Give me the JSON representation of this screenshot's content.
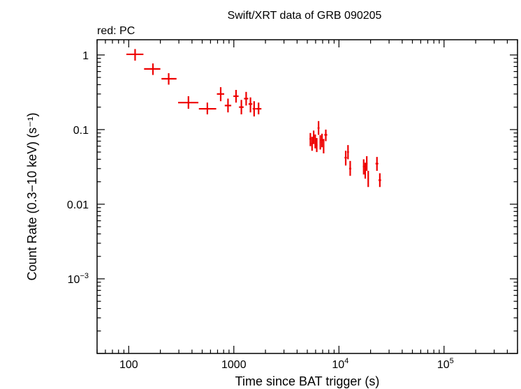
{
  "chart_data": {
    "type": "scatter",
    "title": "Swift/XRT data of GRB 090205",
    "subtitle": "red: PC",
    "xlabel": "Time since BAT trigger (s)",
    "ylabel": "Count Rate (0.3−10 keV) (s⁻¹)",
    "xscale": "log",
    "yscale": "log",
    "xlim": [
      50,
      500000
    ],
    "ylim": [
      0.0001,
      1.6
    ],
    "x_ticks": [
      {
        "value": 100,
        "label": "100"
      },
      {
        "value": 1000,
        "label": "1000"
      },
      {
        "value": 10000,
        "base": "10",
        "exp": "4"
      },
      {
        "value": 100000,
        "base": "10",
        "exp": "5"
      }
    ],
    "y_ticks": [
      {
        "value": 1,
        "label": "1"
      },
      {
        "value": 0.1,
        "label": "0.1"
      },
      {
        "value": 0.01,
        "label": "0.01"
      },
      {
        "value": 0.001,
        "base": "10",
        "exp": "−3"
      }
    ],
    "series_color": "#ee0000",
    "series": [
      {
        "name": "PC",
        "points": [
          {
            "t": 115,
            "tlo": 95,
            "thi": 138,
            "r": 1.02,
            "rlo": 0.84,
            "rhi": 1.2
          },
          {
            "t": 170,
            "tlo": 140,
            "thi": 200,
            "r": 0.65,
            "rlo": 0.54,
            "rhi": 0.77
          },
          {
            "t": 240,
            "tlo": 205,
            "thi": 285,
            "r": 0.48,
            "rlo": 0.4,
            "rhi": 0.57
          },
          {
            "t": 370,
            "tlo": 295,
            "thi": 460,
            "r": 0.23,
            "rlo": 0.19,
            "rhi": 0.28
          },
          {
            "t": 560,
            "tlo": 465,
            "thi": 680,
            "r": 0.19,
            "rlo": 0.16,
            "rhi": 0.23
          },
          {
            "t": 750,
            "tlo": 690,
            "thi": 810,
            "r": 0.3,
            "rlo": 0.24,
            "rhi": 0.37
          },
          {
            "t": 880,
            "tlo": 820,
            "thi": 945,
            "r": 0.21,
            "rlo": 0.17,
            "rhi": 0.26
          },
          {
            "t": 1050,
            "tlo": 990,
            "thi": 1110,
            "r": 0.28,
            "rlo": 0.23,
            "rhi": 0.34
          },
          {
            "t": 1180,
            "tlo": 1120,
            "thi": 1240,
            "r": 0.2,
            "rlo": 0.16,
            "rhi": 0.25
          },
          {
            "t": 1310,
            "tlo": 1250,
            "thi": 1370,
            "r": 0.26,
            "rlo": 0.21,
            "rhi": 0.32
          },
          {
            "t": 1440,
            "tlo": 1380,
            "thi": 1500,
            "r": 0.22,
            "rlo": 0.17,
            "rhi": 0.27
          },
          {
            "t": 1560,
            "tlo": 1510,
            "thi": 1610,
            "r": 0.19,
            "rlo": 0.15,
            "rhi": 0.24
          },
          {
            "t": 1720,
            "tlo": 1620,
            "thi": 1830,
            "r": 0.19,
            "rlo": 0.16,
            "rhi": 0.23
          },
          {
            "t": 5350,
            "tlo": 5250,
            "thi": 5450,
            "r": 0.075,
            "rlo": 0.06,
            "rhi": 0.09
          },
          {
            "t": 5550,
            "tlo": 5460,
            "thi": 5640,
            "r": 0.065,
            "rlo": 0.052,
            "rhi": 0.08
          },
          {
            "t": 5750,
            "tlo": 5650,
            "thi": 5850,
            "r": 0.08,
            "rlo": 0.064,
            "rhi": 0.097
          },
          {
            "t": 5950,
            "tlo": 5860,
            "thi": 6040,
            "r": 0.07,
            "rlo": 0.056,
            "rhi": 0.086
          },
          {
            "t": 6150,
            "tlo": 6050,
            "thi": 6250,
            "r": 0.062,
            "rlo": 0.05,
            "rhi": 0.077
          },
          {
            "t": 6400,
            "tlo": 6260,
            "thi": 6540,
            "r": 0.105,
            "rlo": 0.085,
            "rhi": 0.13
          },
          {
            "t": 6650,
            "tlo": 6550,
            "thi": 6750,
            "r": 0.068,
            "rlo": 0.054,
            "rhi": 0.084
          },
          {
            "t": 6900,
            "tlo": 6760,
            "thi": 7040,
            "r": 0.072,
            "rlo": 0.058,
            "rhi": 0.088
          },
          {
            "t": 7150,
            "tlo": 7050,
            "thi": 7250,
            "r": 0.06,
            "rlo": 0.048,
            "rhi": 0.075
          },
          {
            "t": 7500,
            "tlo": 7260,
            "thi": 7740,
            "r": 0.085,
            "rlo": 0.07,
            "rhi": 0.1
          },
          {
            "t": 11600,
            "tlo": 11300,
            "thi": 11900,
            "r": 0.042,
            "rlo": 0.033,
            "rhi": 0.052
          },
          {
            "t": 12200,
            "tlo": 11950,
            "thi": 12450,
            "r": 0.05,
            "rlo": 0.04,
            "rhi": 0.062
          },
          {
            "t": 12800,
            "tlo": 12500,
            "thi": 13100,
            "r": 0.03,
            "rlo": 0.024,
            "rhi": 0.038
          },
          {
            "t": 17200,
            "tlo": 16900,
            "thi": 17500,
            "r": 0.032,
            "rlo": 0.025,
            "rhi": 0.04
          },
          {
            "t": 17800,
            "tlo": 17550,
            "thi": 18050,
            "r": 0.028,
            "rlo": 0.022,
            "rhi": 0.036
          },
          {
            "t": 18400,
            "tlo": 18100,
            "thi": 18700,
            "r": 0.035,
            "rlo": 0.028,
            "rhi": 0.044
          },
          {
            "t": 19000,
            "tlo": 18750,
            "thi": 19250,
            "r": 0.022,
            "rlo": 0.017,
            "rhi": 0.028
          },
          {
            "t": 23000,
            "tlo": 22300,
            "thi": 23700,
            "r": 0.035,
            "rlo": 0.028,
            "rhi": 0.043
          },
          {
            "t": 24500,
            "tlo": 23800,
            "thi": 25200,
            "r": 0.021,
            "rlo": 0.017,
            "rhi": 0.026
          }
        ]
      }
    ]
  }
}
